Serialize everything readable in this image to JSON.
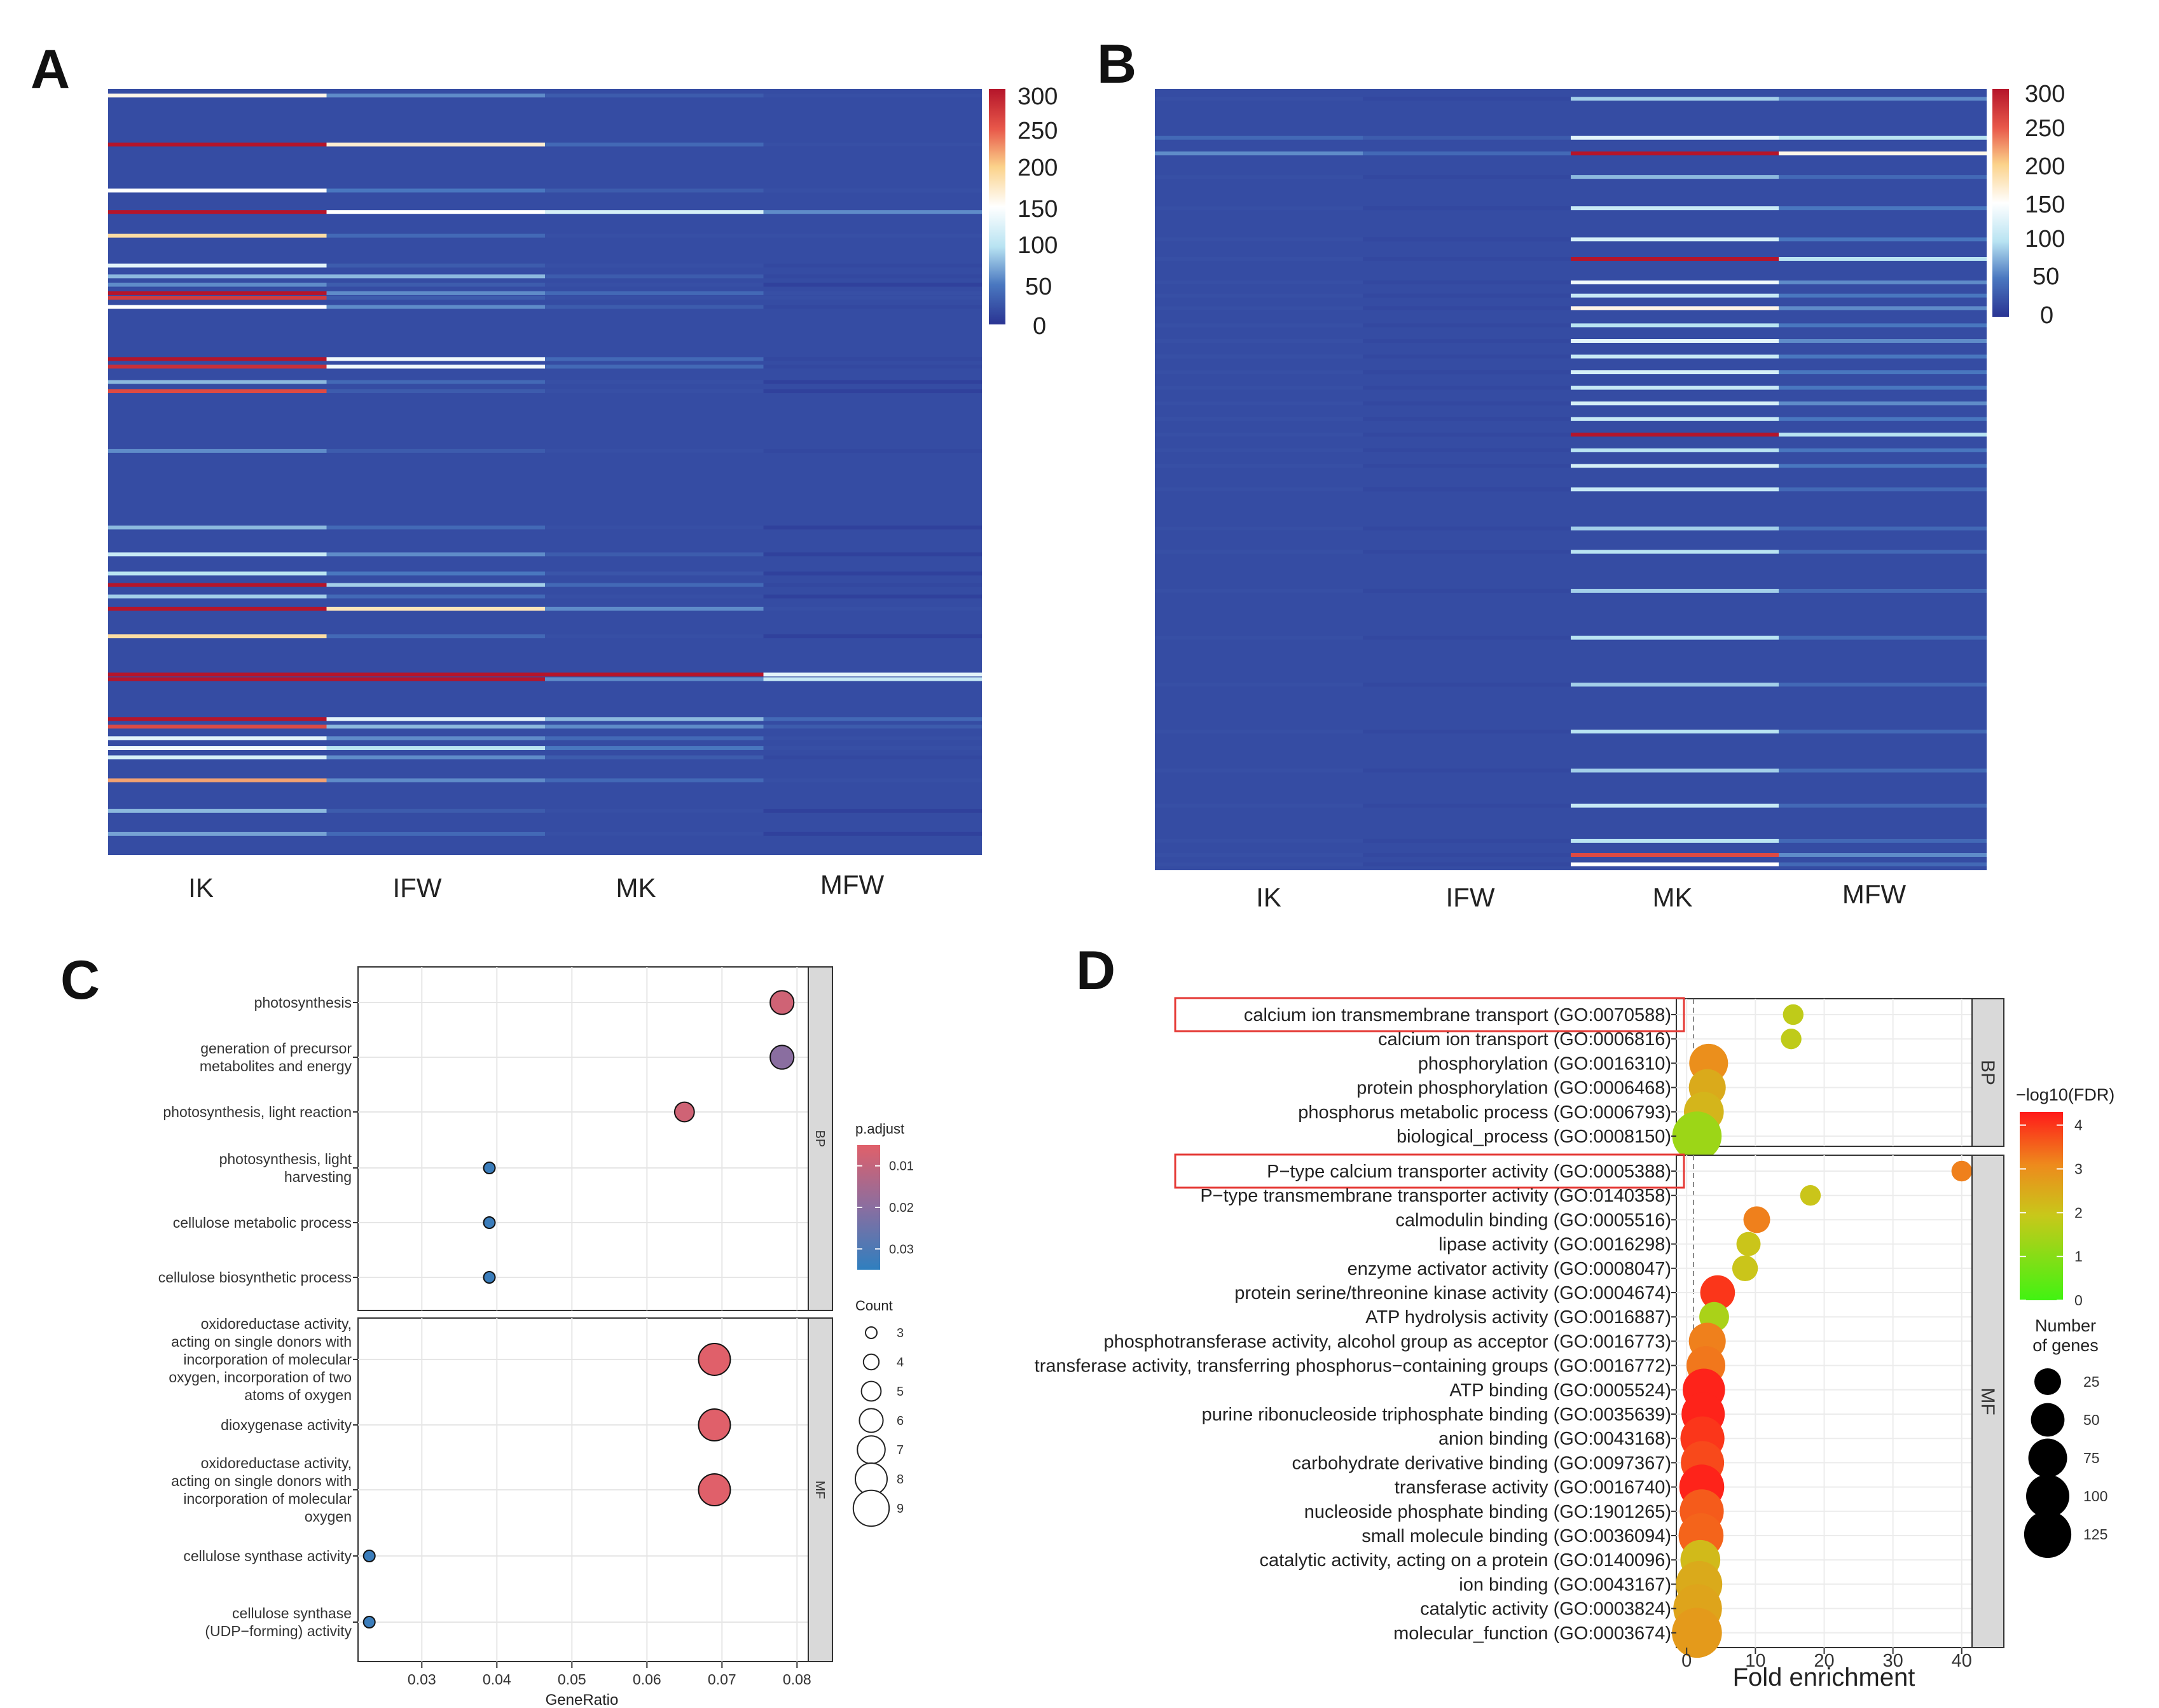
{
  "panel_labels": {
    "a": "A",
    "b": "B",
    "c": "C",
    "d": "D"
  },
  "chart_data": [
    {
      "panel": "A",
      "type": "heatmap",
      "columns": [
        "IK",
        "IFW",
        "MK",
        "MFW"
      ],
      "colorbar": {
        "ticks": [
          "300",
          "250",
          "200",
          "150",
          "100",
          "50",
          "0"
        ],
        "range": [
          0,
          300
        ]
      },
      "highlight_rows": [
        {
          "pos": 0.006,
          "values": [
            160,
            60,
            30,
            20
          ]
        },
        {
          "pos": 0.07,
          "values": [
            300,
            170,
            40,
            20
          ]
        },
        {
          "pos": 0.13,
          "values": [
            150,
            50,
            30,
            20
          ]
        },
        {
          "pos": 0.158,
          "values": [
            300,
            150,
            120,
            60
          ]
        },
        {
          "pos": 0.189,
          "values": [
            190,
            40,
            20,
            20
          ]
        },
        {
          "pos": 0.228,
          "values": [
            130,
            30,
            20,
            15
          ]
        },
        {
          "pos": 0.242,
          "values": [
            80,
            80,
            30,
            15
          ]
        },
        {
          "pos": 0.253,
          "values": [
            60,
            30,
            20,
            10
          ]
        },
        {
          "pos": 0.264,
          "values": [
            300,
            60,
            40,
            20
          ]
        },
        {
          "pos": 0.27,
          "values": [
            270,
            30,
            20,
            20
          ]
        },
        {
          "pos": 0.282,
          "values": [
            150,
            60,
            30,
            15
          ]
        },
        {
          "pos": 0.35,
          "values": [
            300,
            140,
            40,
            15
          ]
        },
        {
          "pos": 0.36,
          "values": [
            280,
            140,
            40,
            15
          ]
        },
        {
          "pos": 0.38,
          "values": [
            80,
            40,
            20,
            10
          ]
        },
        {
          "pos": 0.392,
          "values": [
            260,
            30,
            20,
            10
          ]
        },
        {
          "pos": 0.47,
          "values": [
            60,
            30,
            20,
            15
          ]
        },
        {
          "pos": 0.57,
          "values": [
            80,
            40,
            20,
            10
          ]
        },
        {
          "pos": 0.605,
          "values": [
            110,
            60,
            30,
            10
          ]
        },
        {
          "pos": 0.63,
          "values": [
            100,
            50,
            25,
            10
          ]
        },
        {
          "pos": 0.645,
          "values": [
            300,
            90,
            40,
            15
          ]
        },
        {
          "pos": 0.66,
          "values": [
            90,
            40,
            20,
            10
          ]
        },
        {
          "pos": 0.676,
          "values": [
            300,
            180,
            60,
            20
          ]
        },
        {
          "pos": 0.712,
          "values": [
            190,
            40,
            20,
            10
          ]
        },
        {
          "pos": 0.762,
          "values": [
            300,
            300,
            300,
            130
          ]
        },
        {
          "pos": 0.768,
          "values": [
            300,
            300,
            60,
            110
          ]
        },
        {
          "pos": 0.82,
          "values": [
            300,
            130,
            80,
            40
          ]
        },
        {
          "pos": 0.83,
          "values": [
            260,
            80,
            60,
            30
          ]
        },
        {
          "pos": 0.845,
          "values": [
            130,
            60,
            40,
            20
          ]
        },
        {
          "pos": 0.858,
          "values": [
            140,
            100,
            50,
            20
          ]
        },
        {
          "pos": 0.87,
          "values": [
            120,
            60,
            30,
            15
          ]
        },
        {
          "pos": 0.9,
          "values": [
            220,
            60,
            40,
            20
          ]
        },
        {
          "pos": 0.94,
          "values": [
            80,
            30,
            20,
            10
          ]
        },
        {
          "pos": 0.97,
          "values": [
            70,
            40,
            20,
            10
          ]
        }
      ]
    },
    {
      "panel": "B",
      "type": "heatmap",
      "columns": [
        "IK",
        "IFW",
        "MK",
        "MFW"
      ],
      "colorbar": {
        "ticks": [
          "300",
          "250",
          "200",
          "150",
          "100",
          "50",
          "0"
        ],
        "range": [
          0,
          300
        ]
      },
      "highlight_rows": [
        {
          "pos": 0.01,
          "values": [
            20,
            15,
            90,
            60
          ]
        },
        {
          "pos": 0.06,
          "values": [
            40,
            30,
            130,
            100
          ]
        },
        {
          "pos": 0.08,
          "values": [
            60,
            40,
            300,
            160
          ]
        },
        {
          "pos": 0.11,
          "values": [
            20,
            15,
            80,
            40
          ]
        },
        {
          "pos": 0.15,
          "values": [
            20,
            15,
            110,
            50
          ]
        },
        {
          "pos": 0.19,
          "values": [
            20,
            15,
            120,
            50
          ]
        },
        {
          "pos": 0.215,
          "values": [
            20,
            15,
            300,
            100
          ]
        },
        {
          "pos": 0.245,
          "values": [
            20,
            15,
            140,
            60
          ]
        },
        {
          "pos": 0.262,
          "values": [
            20,
            15,
            110,
            50
          ]
        },
        {
          "pos": 0.278,
          "values": [
            20,
            15,
            160,
            60
          ]
        },
        {
          "pos": 0.3,
          "values": [
            20,
            15,
            100,
            50
          ]
        },
        {
          "pos": 0.32,
          "values": [
            20,
            15,
            130,
            60
          ]
        },
        {
          "pos": 0.34,
          "values": [
            20,
            15,
            110,
            50
          ]
        },
        {
          "pos": 0.36,
          "values": [
            20,
            15,
            120,
            50
          ]
        },
        {
          "pos": 0.38,
          "values": [
            20,
            15,
            110,
            50
          ]
        },
        {
          "pos": 0.4,
          "values": [
            20,
            15,
            120,
            60
          ]
        },
        {
          "pos": 0.42,
          "values": [
            20,
            15,
            110,
            50
          ]
        },
        {
          "pos": 0.44,
          "values": [
            20,
            15,
            300,
            100
          ]
        },
        {
          "pos": 0.46,
          "values": [
            20,
            15,
            100,
            50
          ]
        },
        {
          "pos": 0.48,
          "values": [
            20,
            15,
            120,
            50
          ]
        },
        {
          "pos": 0.51,
          "values": [
            20,
            15,
            110,
            40
          ]
        },
        {
          "pos": 0.56,
          "values": [
            20,
            15,
            90,
            40
          ]
        },
        {
          "pos": 0.59,
          "values": [
            20,
            15,
            100,
            40
          ]
        },
        {
          "pos": 0.64,
          "values": [
            20,
            15,
            90,
            40
          ]
        },
        {
          "pos": 0.7,
          "values": [
            20,
            15,
            100,
            40
          ]
        },
        {
          "pos": 0.76,
          "values": [
            20,
            15,
            90,
            40
          ]
        },
        {
          "pos": 0.82,
          "values": [
            20,
            15,
            100,
            40
          ]
        },
        {
          "pos": 0.87,
          "values": [
            20,
            15,
            90,
            40
          ]
        },
        {
          "pos": 0.915,
          "values": [
            20,
            15,
            110,
            40
          ]
        },
        {
          "pos": 0.96,
          "values": [
            20,
            15,
            100,
            40
          ]
        },
        {
          "pos": 0.978,
          "values": [
            20,
            15,
            260,
            60
          ]
        },
        {
          "pos": 0.99,
          "values": [
            20,
            15,
            150,
            40
          ]
        }
      ]
    },
    {
      "panel": "C",
      "type": "scatter",
      "xlabel": "GeneRatio",
      "xticks": [
        "0.03",
        "0.04",
        "0.05",
        "0.06",
        "0.07",
        "0.08"
      ],
      "xlim": [
        0.0215,
        0.0815
      ],
      "facets": [
        {
          "name": "BP",
          "terms": [
            {
              "label": [
                "photosynthesis"
              ],
              "x": 0.078,
              "count": 6,
              "padj": 0.008
            },
            {
              "label": [
                "generation of precursor",
                "metabolites and energy"
              ],
              "x": 0.078,
              "count": 6,
              "padj": 0.02
            },
            {
              "label": [
                "photosynthesis, light reaction"
              ],
              "x": 0.065,
              "count": 5,
              "padj": 0.008
            },
            {
              "label": [
                "photosynthesis, light",
                "harvesting"
              ],
              "x": 0.039,
              "count": 3,
              "padj": 0.033
            },
            {
              "label": [
                "cellulose metabolic process"
              ],
              "x": 0.039,
              "count": 3,
              "padj": 0.033
            },
            {
              "label": [
                "cellulose biosynthetic process"
              ],
              "x": 0.039,
              "count": 3,
              "padj": 0.033
            }
          ]
        },
        {
          "name": "MF",
          "terms": [
            {
              "label": [
                "oxidoreductase activity,",
                "acting on single donors with",
                "incorporation of molecular",
                "oxygen, incorporation of two",
                "atoms of oxygen"
              ],
              "x": 0.069,
              "count": 8,
              "padj": 0.005
            },
            {
              "label": [
                "dioxygenase activity"
              ],
              "x": 0.069,
              "count": 8,
              "padj": 0.005
            },
            {
              "label": [
                "oxidoreductase activity,",
                "acting on single donors with",
                "incorporation of molecular",
                "oxygen"
              ],
              "x": 0.069,
              "count": 8,
              "padj": 0.005
            },
            {
              "label": [
                "cellulose synthase activity"
              ],
              "x": 0.023,
              "count": 3,
              "padj": 0.033
            },
            {
              "label": [
                "cellulose synthase",
                "(UDP−forming) activity"
              ],
              "x": 0.023,
              "count": 3,
              "padj": 0.033
            }
          ]
        }
      ],
      "legend": {
        "padj_title": "p.adjust",
        "padj_ticks": [
          "0.01",
          "0.02",
          "0.03"
        ],
        "padj_range": [
          0.005,
          0.035
        ],
        "count_title": "Count",
        "count_values": [
          "3",
          "4",
          "5",
          "6",
          "7",
          "8",
          "9"
        ]
      }
    },
    {
      "panel": "D",
      "type": "scatter",
      "xlabel": "Fold enrichment",
      "xticks": [
        "0",
        "10",
        "20",
        "30",
        "40"
      ],
      "xlim": [
        -1.5,
        41.5
      ],
      "facets": [
        {
          "name": "BP",
          "terms": [
            {
              "label": "calcium ion transmembrane transport (GO:0070588)",
              "x": 15.5,
              "genes": 10,
              "fdr": 1.8,
              "boxed": true
            },
            {
              "label": "calcium ion transport (GO:0006816)",
              "x": 15.2,
              "genes": 10,
              "fdr": 1.8
            },
            {
              "label": "phosphorylation (GO:0016310)",
              "x": 3.2,
              "genes": 75,
              "fdr": 3.0
            },
            {
              "label": "protein phosphorylation (GO:0006468)",
              "x": 3.0,
              "genes": 65,
              "fdr": 2.5
            },
            {
              "label": "phosphorus metabolic process (GO:0006793)",
              "x": 2.5,
              "genes": 80,
              "fdr": 2.3
            },
            {
              "label": "biological_process (GO:0008150)",
              "x": 1.5,
              "genes": 140,
              "fdr": 1.3
            }
          ]
        },
        {
          "name": "MF",
          "terms": [
            {
              "label": "P−type calcium transporter activity (GO:0005388)",
              "x": 40.0,
              "genes": 10,
              "fdr": 3.2,
              "boxed": true
            },
            {
              "label": "P−type transmembrane transporter activity (GO:0140358)",
              "x": 18.0,
              "genes": 10,
              "fdr": 2.0
            },
            {
              "label": "calmodulin binding (GO:0005516)",
              "x": 10.2,
              "genes": 25,
              "fdr": 3.2
            },
            {
              "label": "lipase activity (GO:0016298)",
              "x": 9.0,
              "genes": 18,
              "fdr": 2.0
            },
            {
              "label": "enzyme activator activity (GO:0008047)",
              "x": 8.5,
              "genes": 22,
              "fdr": 2.0
            },
            {
              "label": "protein serine/threonine kinase activity (GO:0004674)",
              "x": 4.5,
              "genes": 55,
              "fdr": 4.0
            },
            {
              "label": "ATP hydrolysis activity (GO:0016887)",
              "x": 4.0,
              "genes": 35,
              "fdr": 1.5
            },
            {
              "label": "phosphotransferase activity, alcohol group as acceptor (GO:0016773)",
              "x": 3.0,
              "genes": 65,
              "fdr": 3.2
            },
            {
              "label": "transferase activity, transferring phosphorus−containing groups (GO:0016772)",
              "x": 2.8,
              "genes": 75,
              "fdr": 3.3
            },
            {
              "label": "ATP binding (GO:0005524)",
              "x": 2.5,
              "genes": 95,
              "fdr": 4.2
            },
            {
              "label": "purine ribonucleoside triphosphate binding (GO:0035639)",
              "x": 2.4,
              "genes": 100,
              "fdr": 4.2
            },
            {
              "label": "anion binding (GO:0043168)",
              "x": 2.3,
              "genes": 105,
              "fdr": 4.0
            },
            {
              "label": "carbohydrate derivative binding (GO:0097367)",
              "x": 2.3,
              "genes": 100,
              "fdr": 3.8
            },
            {
              "label": "transferase activity (GO:0016740)",
              "x": 2.2,
              "genes": 110,
              "fdr": 4.2
            },
            {
              "label": "nucleoside phosphate binding (GO:1901265)",
              "x": 2.2,
              "genes": 105,
              "fdr": 3.6
            },
            {
              "label": "small molecule binding (GO:0036094)",
              "x": 2.1,
              "genes": 110,
              "fdr": 3.5
            },
            {
              "label": "catalytic activity, acting on a protein (GO:0140096)",
              "x": 2.0,
              "genes": 80,
              "fdr": 2.2
            },
            {
              "label": "ion binding (GO:0043167)",
              "x": 1.8,
              "genes": 120,
              "fdr": 2.5
            },
            {
              "label": "catalytic activity (GO:0003824)",
              "x": 1.6,
              "genes": 135,
              "fdr": 2.6
            },
            {
              "label": "molecular_function (GO:0003674)",
              "x": 1.5,
              "genes": 145,
              "fdr": 2.8
            }
          ]
        }
      ],
      "legend": {
        "fdr_title": "−log10(FDR)",
        "fdr_ticks": [
          "4",
          "3",
          "2",
          "1",
          "0"
        ],
        "fdr_range": [
          0,
          4.3
        ],
        "genes_title": [
          "Number",
          "of genes"
        ],
        "genes_values": [
          "25",
          "50",
          "75",
          "100",
          "125"
        ]
      }
    }
  ]
}
